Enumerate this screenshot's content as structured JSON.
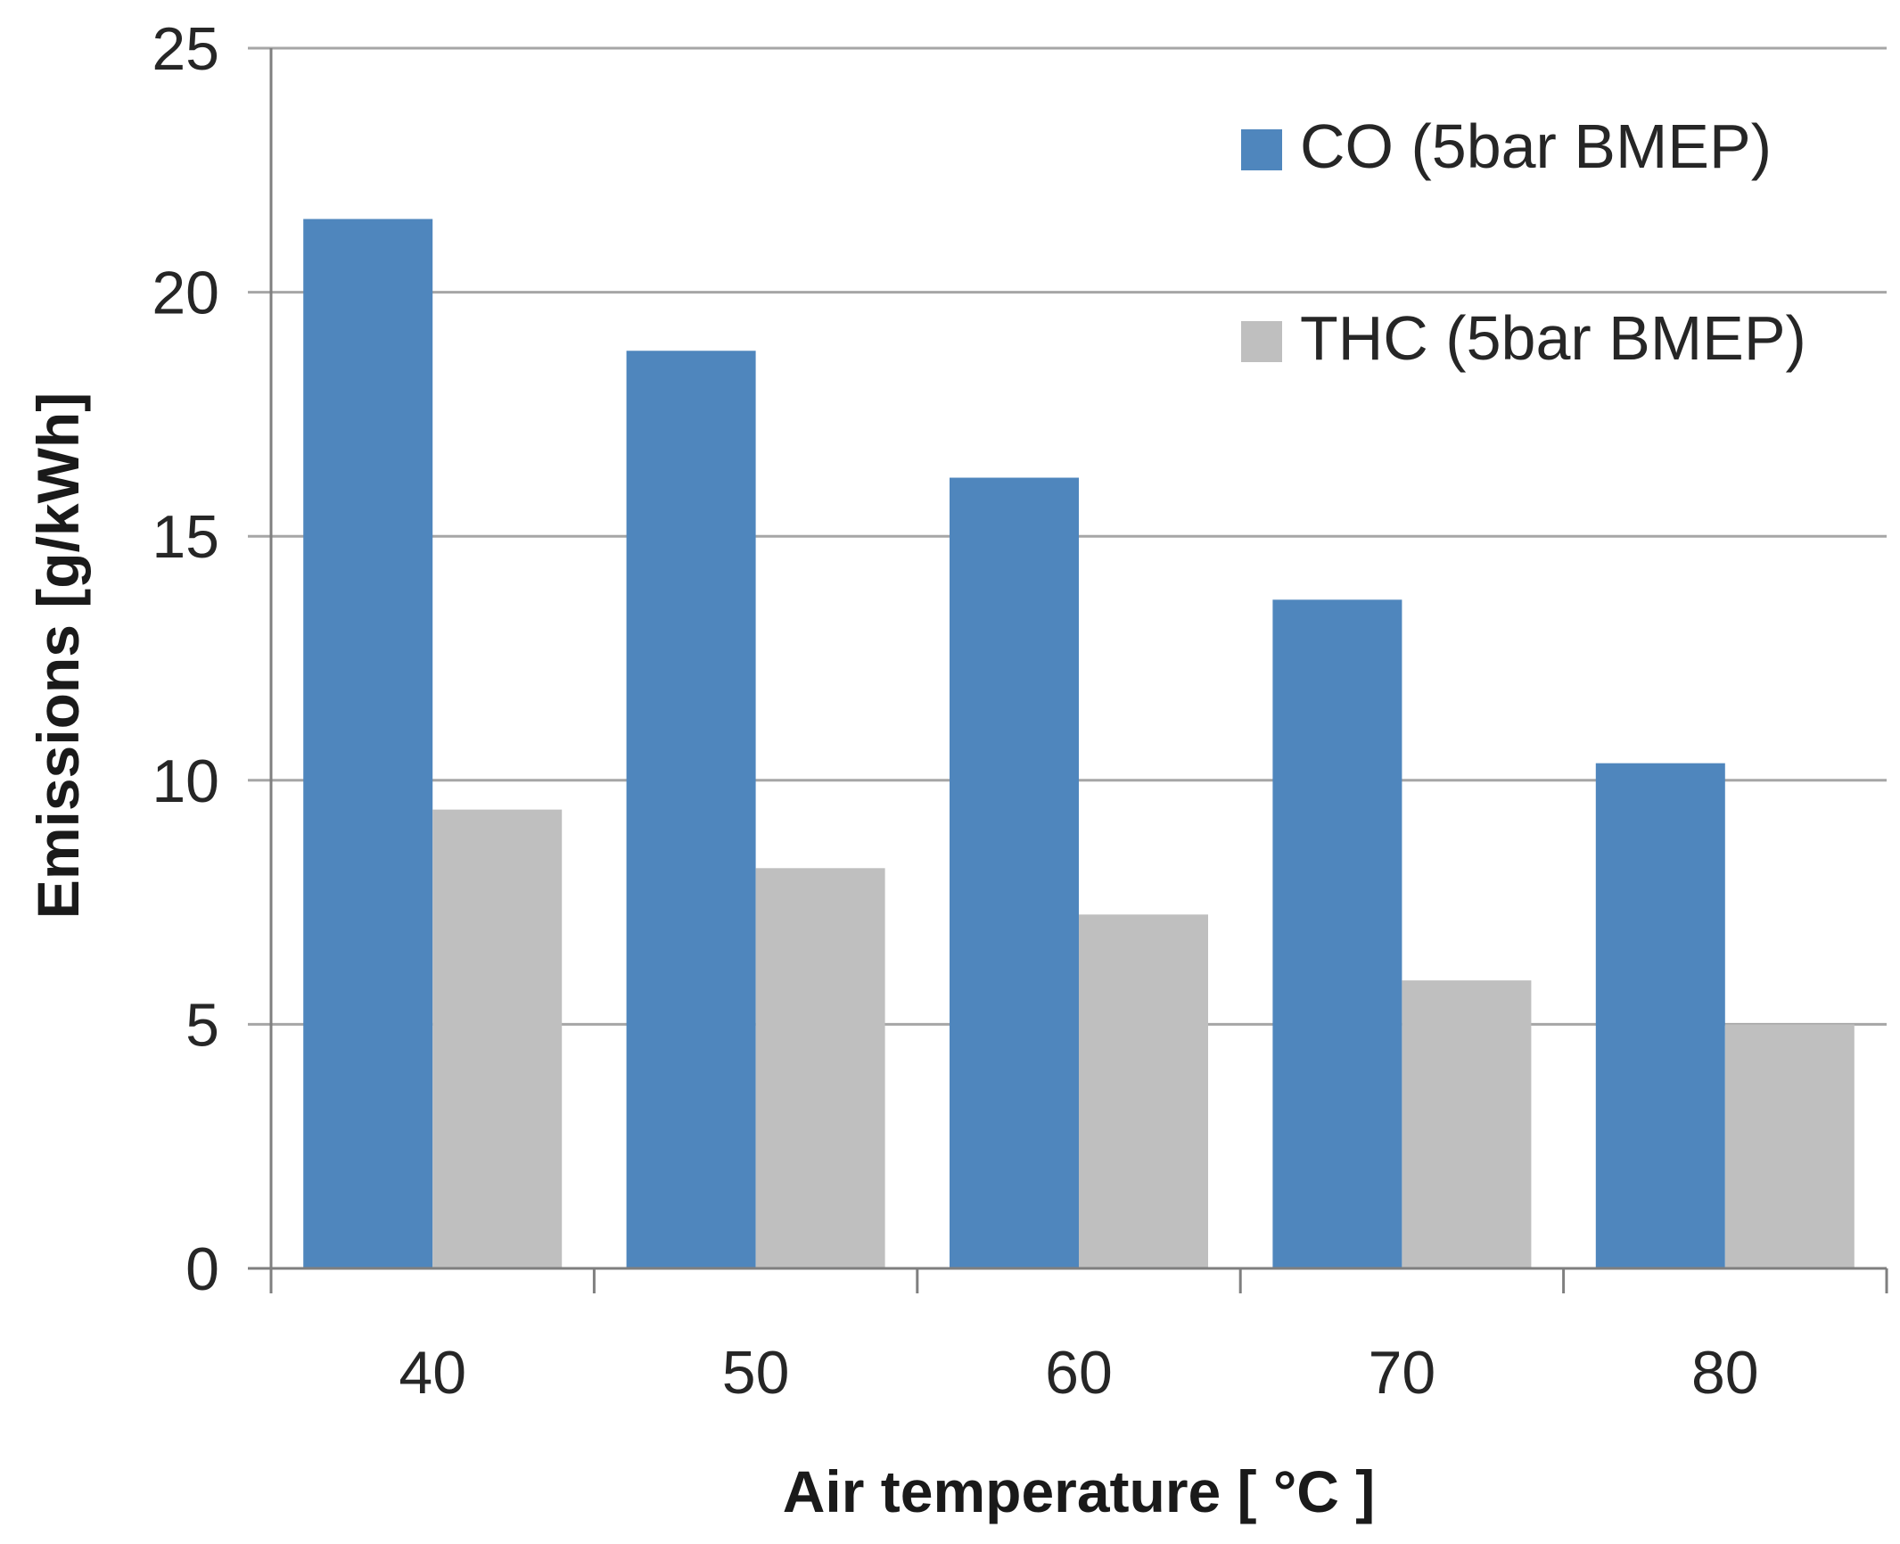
{
  "chart_data": {
    "type": "bar",
    "title": "",
    "xlabel": "Air temperature [ °C ]",
    "ylabel": "Emissions [g/kWh]",
    "categories": [
      "40",
      "50",
      "60",
      "70",
      "80"
    ],
    "series": [
      {
        "name": "CO (5bar BMEP)",
        "color": "#4f86bd",
        "values": [
          21.5,
          18.8,
          16.2,
          13.7,
          10.35
        ]
      },
      {
        "name": "THC (5bar BMEP)",
        "color": "#bfbfbf",
        "values": [
          9.4,
          8.2,
          7.25,
          5.9,
          5.0
        ]
      }
    ],
    "ylim": [
      0,
      25
    ],
    "yticks": [
      "0",
      "5",
      "10",
      "15",
      "20",
      "25"
    ],
    "grid": true,
    "legend_position": "top-right"
  }
}
